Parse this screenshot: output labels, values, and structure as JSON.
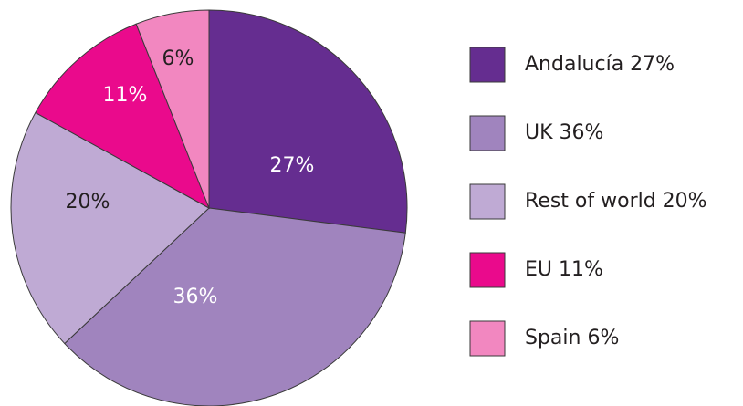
{
  "chart_data": {
    "type": "pie",
    "categories": [
      "Andalucía 27%",
      "UK 36%",
      "Rest of world 20%",
      "EU 11%",
      "Spain 6%"
    ],
    "values": [
      27,
      36,
      20,
      11,
      6
    ],
    "value_labels": [
      "27%",
      "36%",
      "20%",
      "11%",
      "6%"
    ],
    "colors": [
      "#652d90",
      "#a084be",
      "#bfaad4",
      "#ea0a8c",
      "#f287c0"
    ],
    "label_colors": [
      "#ffffff",
      "#ffffff",
      "#231f20",
      "#ffffff",
      "#231f20"
    ],
    "legend": "right"
  }
}
